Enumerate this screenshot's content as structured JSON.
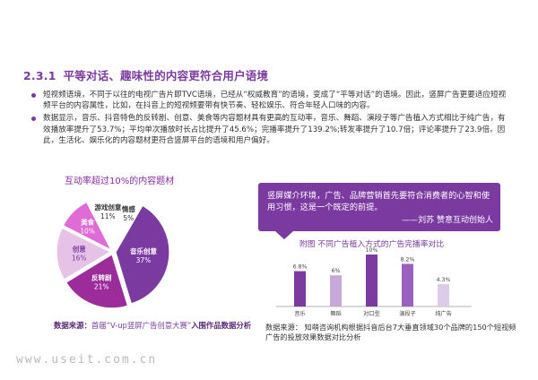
{
  "section": {
    "number": "2.3.1",
    "title": "平等对话、趣味性的内容更符合用户语境"
  },
  "bullets": [
    "短视频语境，不同于以往的电视广告片即TVC语境，已经从“权威教育”的语境，变成了“平等对话”的语境。因此，竖屏广告更要适应短视频平台的内容属性，比如，在抖音上的短视频要带有快节奏、轻松娱乐、符合年轻人口味的内容。",
    "数据显示，音乐、抖音特色的反转剧、创意、美食等内容题材具有更高的互动率，音乐、舞蹈、演段子等广告植入方式相比于纯广告，有效播放率提升了53.7%；平均单次播放时长占比提升了45.6%；完播率提升了139.2%;转发率提升了10.7倍；评论率提升了23.9倍。因此，生活化、娱乐化的内容题材更符合竖屏平台的语境和用户偏好。"
  ],
  "pie": {
    "title": "互动率超过10%的内容题材",
    "source_label": "数据来源：",
    "source_mid": "首届“V-up竖屏广告创意大赛”",
    "source_tail": "入围作品数据分析"
  },
  "quote": {
    "text": "竖屏媒介环境，广告、品牌营销首先要符合消费者的心智和使用习惯，这是一个既定的前提。",
    "author": "——刘苏  赞意互动创始人"
  },
  "bar": {
    "title": "附图  不同广告植入方式的广告完播率对比",
    "source": "数据来源：  知萌咨询机构根据抖音后台7大垂直领域30个品牌的150个短视频广告的投放效果数据对比分析"
  },
  "watermark": "www.useit.com.cn",
  "chart_data": [
    {
      "type": "pie",
      "title": "互动率超过10%的内容题材",
      "slices": [
        {
          "name": "音乐创意",
          "value": 37,
          "label": "37%",
          "color": "#7b3aa0"
        },
        {
          "name": "反转剧",
          "value": 21,
          "label": "21%",
          "color": "#9b2c9a"
        },
        {
          "name": "创意",
          "value": 16,
          "label": "16%",
          "color": "#e6c3e6"
        },
        {
          "name": "美食",
          "value": 10,
          "label": "10%",
          "color": "#e06ad6"
        },
        {
          "name": "游戏创意",
          "value": 11,
          "label": "11%",
          "color": "#ffffff"
        },
        {
          "name": "情感",
          "value": 5,
          "label": "5%",
          "color": "#ffffff"
        }
      ]
    },
    {
      "type": "bar",
      "title": "不同广告植入方式的广告完播率对比",
      "categories": [
        "音乐",
        "舞蹈",
        "对口型",
        "演段子",
        "纯广告"
      ],
      "values": [
        6.8,
        6,
        10,
        8.2,
        4.3
      ],
      "labels": [
        "6.8%",
        "6%",
        "10%",
        "8.2%",
        "4.3%"
      ],
      "colors": [
        "#7b3aa0",
        "#c7a8da",
        "#7b3aa0",
        "#9a61be",
        "#dccbe9"
      ],
      "ylim": [
        0,
        10
      ]
    }
  ]
}
